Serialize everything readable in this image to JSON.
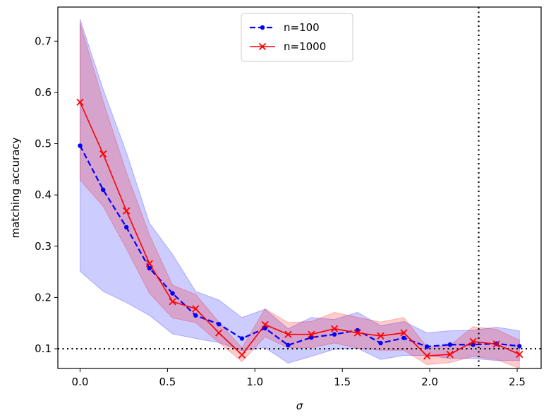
{
  "chart_data": {
    "type": "line",
    "title": "",
    "xlabel": "σ",
    "ylabel": "matching accuracy",
    "xlim": [
      -0.127,
      2.637
    ],
    "ylim": [
      0.0615,
      0.7665
    ],
    "xticks": [
      0.0,
      0.5,
      1.0,
      1.5,
      2.0,
      2.5
    ],
    "yticks": [
      0.1,
      0.2,
      0.3,
      0.4,
      0.5,
      0.6,
      0.7
    ],
    "grid": false,
    "legend_position": "top-center",
    "x": [
      0.0,
      0.132,
      0.265,
      0.397,
      0.529,
      0.661,
      0.794,
      0.926,
      1.058,
      1.19,
      1.323,
      1.455,
      1.587,
      1.719,
      1.852,
      1.984,
      2.116,
      2.248,
      2.381,
      2.513
    ],
    "series": [
      {
        "name": "n=100",
        "color": "#0000ff",
        "line_style": "dashed",
        "marker": "dot",
        "values": [
          0.496,
          0.41,
          0.337,
          0.257,
          0.208,
          0.165,
          0.148,
          0.12,
          0.14,
          0.107,
          0.122,
          0.128,
          0.136,
          0.111,
          0.121,
          0.104,
          0.108,
          0.108,
          0.11,
          0.105
        ],
        "band_lower": [
          0.251,
          0.212,
          0.19,
          0.165,
          0.129,
          0.12,
          0.112,
          0.096,
          0.102,
          0.072,
          0.085,
          0.099,
          0.101,
          0.079,
          0.087,
          0.087,
          0.081,
          0.081,
          0.077,
          0.077
        ],
        "band_upper": [
          0.743,
          0.606,
          0.483,
          0.345,
          0.284,
          0.212,
          0.195,
          0.161,
          0.177,
          0.139,
          0.161,
          0.157,
          0.171,
          0.145,
          0.153,
          0.131,
          0.135,
          0.136,
          0.142,
          0.135
        ]
      },
      {
        "name": "n=1000",
        "color": "#ff0000",
        "line_style": "solid",
        "marker": "x",
        "values": [
          0.581,
          0.48,
          0.369,
          0.266,
          0.192,
          0.178,
          0.131,
          0.088,
          0.147,
          0.128,
          0.128,
          0.139,
          0.131,
          0.125,
          0.131,
          0.086,
          0.089,
          0.114,
          0.109,
          0.089
        ],
        "band_lower": [
          0.429,
          0.378,
          0.295,
          0.208,
          0.16,
          0.151,
          0.112,
          0.075,
          0.123,
          0.102,
          0.102,
          0.111,
          0.101,
          0.097,
          0.097,
          0.069,
          0.073,
          0.085,
          0.079,
          0.062
        ],
        "band_upper": [
          0.735,
          0.583,
          0.444,
          0.322,
          0.224,
          0.206,
          0.152,
          0.102,
          0.178,
          0.151,
          0.153,
          0.171,
          0.161,
          0.152,
          0.161,
          0.103,
          0.106,
          0.143,
          0.138,
          0.117
        ]
      }
    ],
    "reference_lines": [
      {
        "orientation": "horizontal",
        "value": 0.1,
        "style": "dotted",
        "color": "#000000"
      },
      {
        "orientation": "vertical",
        "value": 2.28,
        "style": "dotted",
        "color": "#000000"
      }
    ]
  }
}
